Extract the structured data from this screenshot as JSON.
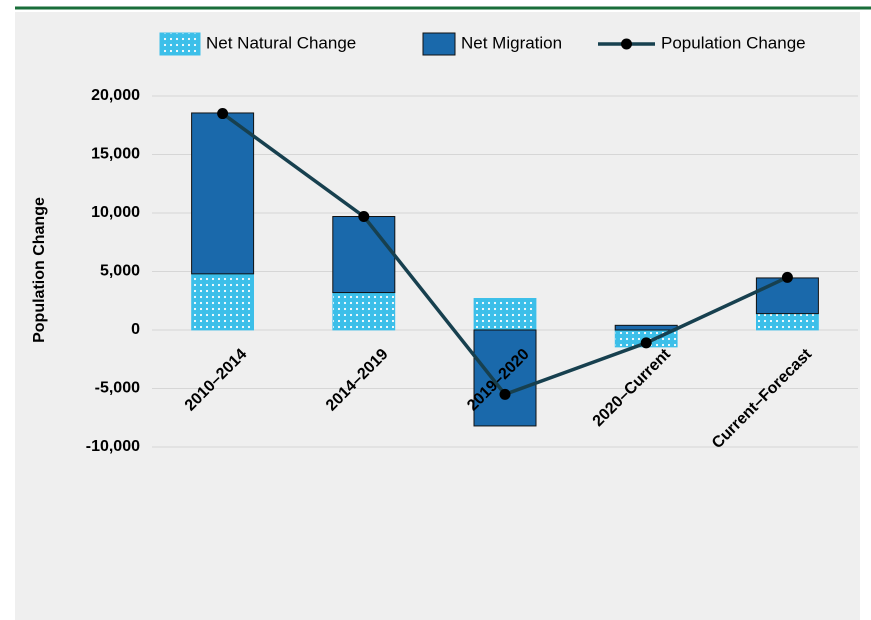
{
  "chart_data": {
    "type": "bar",
    "categories": [
      "2010–2014",
      "2014–2019",
      "2019–2020",
      "2020–Current",
      "Current–Forecast"
    ],
    "series": [
      {
        "name": "Net Natural Change",
        "color": "#3cbfe9",
        "values": [
          4800,
          3200,
          2700,
          -1450,
          1400
        ]
      },
      {
        "name": "Net Migration",
        "color": "#1a69ab",
        "values": [
          13750,
          6500,
          -8200,
          400,
          3050
        ]
      },
      {
        "name": "Population Change",
        "type": "line",
        "color": "#17404f",
        "values": [
          18500,
          9700,
          -5500,
          -1100,
          4500
        ]
      }
    ],
    "stacked": true,
    "ylabel": "Population Change",
    "ylim": [
      -10000,
      20000
    ],
    "yticks": [
      {
        "value": -10000,
        "label": "-10,000"
      },
      {
        "value": -5000,
        "label": "-5,000"
      },
      0,
      {
        "value": 5000,
        "label": "5,000"
      },
      {
        "value": 10000,
        "label": "10,000"
      },
      {
        "value": 15000,
        "label": "15,000"
      },
      {
        "value": 20000,
        "label": "20,000"
      }
    ],
    "grid": true,
    "legend": "top"
  }
}
